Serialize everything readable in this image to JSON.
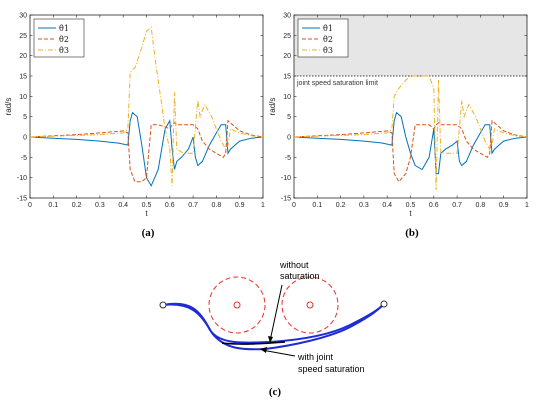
{
  "charts": [
    {
      "type": "line",
      "caption": "(a)",
      "xlabel": "t",
      "ylabel": "rad/s",
      "xlim": [
        0,
        1
      ],
      "ylim": [
        -15,
        30
      ],
      "xticks": [
        "0",
        "0.1",
        "0.2",
        "0.3",
        "0.4",
        "0.5",
        "0.6",
        "0.7",
        "0.8",
        "0.9",
        "1"
      ],
      "yticks": [
        "-15",
        "-10",
        "-5",
        "0",
        "5",
        "10",
        "15",
        "20",
        "25",
        "30"
      ],
      "legend_position": "top-left",
      "series": [
        {
          "name": "θ̇1",
          "color": "#0072BD",
          "style": "solid",
          "x": [
            0,
            0.1,
            0.2,
            0.3,
            0.38,
            0.42,
            0.43,
            0.44,
            0.46,
            0.48,
            0.5,
            0.52,
            0.55,
            0.58,
            0.6,
            0.61,
            0.62,
            0.63,
            0.65,
            0.68,
            0.7,
            0.71,
            0.72,
            0.74,
            0.77,
            0.8,
            0.82,
            0.84,
            0.85,
            0.86,
            0.88,
            0.9,
            0.95,
            1
          ],
          "y": [
            0,
            -0.3,
            -0.6,
            -1,
            -1.5,
            -2,
            4,
            6,
            5,
            -2,
            -10,
            -12,
            -8,
            2,
            4,
            -3,
            -8,
            -6,
            -5,
            -3,
            0,
            -5,
            -7,
            -6,
            -2,
            1,
            3,
            3,
            -4,
            -3,
            -2,
            -1,
            -0.3,
            0
          ]
        },
        {
          "name": "θ̇2",
          "color": "#D95319",
          "style": "dash",
          "x": [
            0,
            0.1,
            0.2,
            0.3,
            0.4,
            0.42,
            0.43,
            0.45,
            0.48,
            0.5,
            0.52,
            0.55,
            0.58,
            0.6,
            0.61,
            0.62,
            0.63,
            0.65,
            0.68,
            0.7,
            0.72,
            0.74,
            0.77,
            0.8,
            0.83,
            0.84,
            0.85,
            0.87,
            0.9,
            0.95,
            1
          ],
          "y": [
            0,
            0.3,
            0.6,
            1,
            1.5,
            1,
            -8,
            -11,
            -11,
            -10,
            3,
            3,
            2.5,
            2,
            3,
            3.5,
            3,
            3,
            3,
            3,
            2,
            -1,
            -3,
            -4,
            -5,
            -4,
            4,
            3,
            1.5,
            0.5,
            0
          ]
        },
        {
          "name": "θ̇3",
          "color": "#EDB120",
          "style": "dashdot",
          "x": [
            0,
            0.1,
            0.2,
            0.3,
            0.4,
            0.42,
            0.43,
            0.45,
            0.48,
            0.5,
            0.52,
            0.54,
            0.56,
            0.58,
            0.6,
            0.61,
            0.62,
            0.63,
            0.66,
            0.7,
            0.72,
            0.73,
            0.75,
            0.78,
            0.82,
            0.84,
            0.85,
            0.86,
            0.9,
            0.95,
            1
          ],
          "y": [
            0,
            0.2,
            0.4,
            0.6,
            1,
            2,
            16,
            17,
            22,
            26,
            27,
            18,
            10,
            2,
            -3,
            -12,
            11,
            -3,
            -4,
            -4,
            9,
            5,
            8,
            5,
            -1,
            -3,
            -2,
            2,
            1,
            0.3,
            0
          ]
        }
      ]
    },
    {
      "type": "line",
      "caption": "(b)",
      "xlabel": "t",
      "ylabel": "rad/s",
      "xlim": [
        0,
        1
      ],
      "ylim": [
        -15,
        30
      ],
      "xticks": [
        "0",
        "0.1",
        "0.2",
        "0.3",
        "0.4",
        "0.5",
        "0.6",
        "0.7",
        "0.8",
        "0.9",
        "1"
      ],
      "yticks": [
        "-15",
        "-10",
        "-5",
        "0",
        "5",
        "10",
        "15",
        "20",
        "25",
        "30"
      ],
      "legend_position": "top-left",
      "saturation_limit": 15,
      "saturation_label": "joint speed saturation limit",
      "series": [
        {
          "name": "θ̇1",
          "color": "#0072BD",
          "style": "solid",
          "x": [
            0,
            0.1,
            0.2,
            0.3,
            0.38,
            0.42,
            0.43,
            0.44,
            0.46,
            0.48,
            0.5,
            0.52,
            0.55,
            0.58,
            0.6,
            0.61,
            0.62,
            0.63,
            0.65,
            0.68,
            0.7,
            0.71,
            0.72,
            0.74,
            0.77,
            0.8,
            0.82,
            0.84,
            0.85,
            0.86,
            0.88,
            0.9,
            0.95,
            1
          ],
          "y": [
            0,
            -0.3,
            -0.6,
            -1,
            -1.5,
            -2,
            4,
            6,
            5,
            0,
            -4,
            -7,
            -8,
            -5,
            2,
            -9,
            -9,
            -4,
            -3,
            -2,
            -1,
            -6,
            -7,
            -6,
            -2,
            1,
            3,
            3,
            -4,
            -3,
            -2,
            -1,
            -0.3,
            0
          ]
        },
        {
          "name": "θ̇2",
          "color": "#D95319",
          "style": "dash",
          "x": [
            0,
            0.1,
            0.2,
            0.3,
            0.4,
            0.42,
            0.43,
            0.45,
            0.48,
            0.5,
            0.52,
            0.55,
            0.58,
            0.6,
            0.61,
            0.62,
            0.63,
            0.65,
            0.68,
            0.7,
            0.72,
            0.74,
            0.77,
            0.8,
            0.83,
            0.84,
            0.85,
            0.87,
            0.9,
            0.95,
            1
          ],
          "y": [
            0,
            0.3,
            0.6,
            1,
            1.5,
            1,
            -9,
            -11,
            -9,
            -5,
            3,
            3,
            3,
            2,
            3,
            3.5,
            3,
            3,
            3,
            3,
            2,
            -1,
            -3,
            -4,
            -5,
            -4,
            4,
            3,
            1.5,
            0.5,
            0
          ]
        },
        {
          "name": "θ̇3",
          "color": "#EDB120",
          "style": "dashdot",
          "x": [
            0,
            0.1,
            0.2,
            0.3,
            0.4,
            0.42,
            0.43,
            0.45,
            0.48,
            0.5,
            0.52,
            0.55,
            0.58,
            0.6,
            0.61,
            0.62,
            0.63,
            0.66,
            0.7,
            0.72,
            0.73,
            0.75,
            0.78,
            0.82,
            0.84,
            0.85,
            0.86,
            0.9,
            0.95,
            1
          ],
          "y": [
            0,
            0.2,
            0.4,
            0.6,
            1,
            2,
            10,
            12,
            14,
            15,
            15,
            15,
            15,
            12,
            -13,
            14,
            -4,
            -4,
            -4,
            9,
            5,
            8,
            5,
            -1,
            -3,
            -2,
            2,
            1,
            0.3,
            0
          ]
        }
      ]
    }
  ],
  "diagram": {
    "caption": "(c)",
    "label_without": [
      "without",
      "saturation"
    ],
    "label_with": [
      "with joint",
      "speed saturation"
    ],
    "path_color": "#1f2bd6",
    "obstacle_color": "#e8302a"
  }
}
